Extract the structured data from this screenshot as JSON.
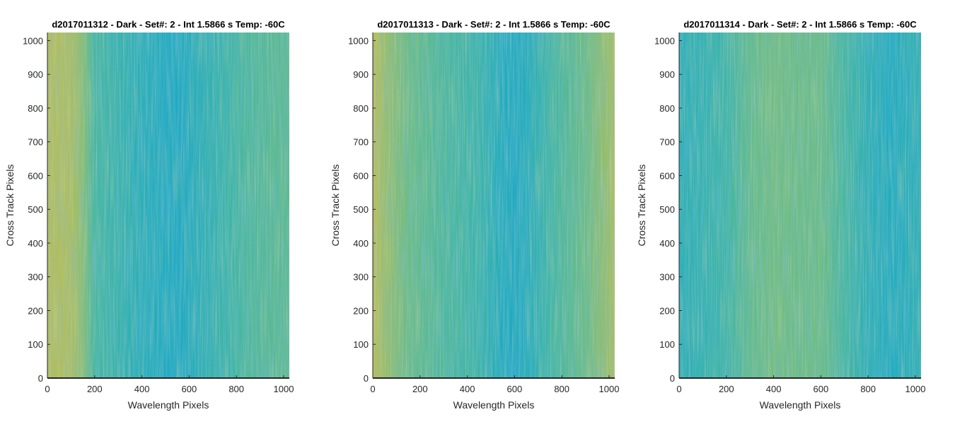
{
  "chart_data": [
    {
      "type": "heatmap",
      "title": "d2017011312 - Dark - Set#: 2 - Int 1.5866 s Temp: -60C",
      "xlabel": "Wavelength Pixels",
      "ylabel": "Cross Track Pixels",
      "xlim": [
        0,
        1024
      ],
      "ylim": [
        0,
        1024
      ],
      "xticks": [
        0,
        200,
        400,
        600,
        800,
        1000
      ],
      "yticks": [
        0,
        100,
        200,
        300,
        400,
        500,
        600,
        700,
        800,
        900,
        1000
      ],
      "colormap": "parula",
      "column_profile": {
        "x": [
          0,
          100,
          150,
          200,
          300,
          400,
          500,
          560,
          650,
          750,
          850,
          950,
          1024
        ],
        "level": [
          0.78,
          0.76,
          0.68,
          0.5,
          0.42,
          0.34,
          0.28,
          0.26,
          0.36,
          0.44,
          0.52,
          0.55,
          0.56
        ]
      }
    },
    {
      "type": "heatmap",
      "title": "d2017011313 - Dark - Set#: 2 - Int 1.5866 s Temp: -60C",
      "xlabel": "Wavelength Pixels",
      "ylabel": "Cross Track Pixels",
      "xlim": [
        0,
        1024
      ],
      "ylim": [
        0,
        1024
      ],
      "xticks": [
        0,
        200,
        400,
        600,
        800,
        1000
      ],
      "yticks": [
        0,
        100,
        200,
        300,
        400,
        500,
        600,
        700,
        800,
        900,
        1000
      ],
      "colormap": "parula",
      "column_profile": {
        "x": [
          0,
          50,
          150,
          300,
          450,
          550,
          600,
          650,
          750,
          900,
          1000,
          1024
        ],
        "level": [
          0.8,
          0.72,
          0.6,
          0.52,
          0.44,
          0.3,
          0.26,
          0.32,
          0.48,
          0.6,
          0.72,
          0.76
        ]
      }
    },
    {
      "type": "heatmap",
      "title": "d2017011314 - Dark - Set#: 2 - Int 1.5866 s Temp: -60C",
      "xlabel": "Wavelength Pixels",
      "ylabel": "Cross Track Pixels",
      "xlim": [
        0,
        1024
      ],
      "ylim": [
        0,
        1024
      ],
      "xticks": [
        0,
        200,
        400,
        600,
        800,
        1000
      ],
      "yticks": [
        0,
        100,
        200,
        300,
        400,
        500,
        600,
        700,
        800,
        900,
        1000
      ],
      "colormap": "parula",
      "column_profile": {
        "x": [
          0,
          100,
          200,
          300,
          400,
          500,
          600,
          700,
          800,
          900,
          1000,
          1024
        ],
        "level": [
          0.36,
          0.4,
          0.46,
          0.58,
          0.62,
          0.6,
          0.6,
          0.5,
          0.36,
          0.3,
          0.36,
          0.38
        ]
      }
    }
  ]
}
